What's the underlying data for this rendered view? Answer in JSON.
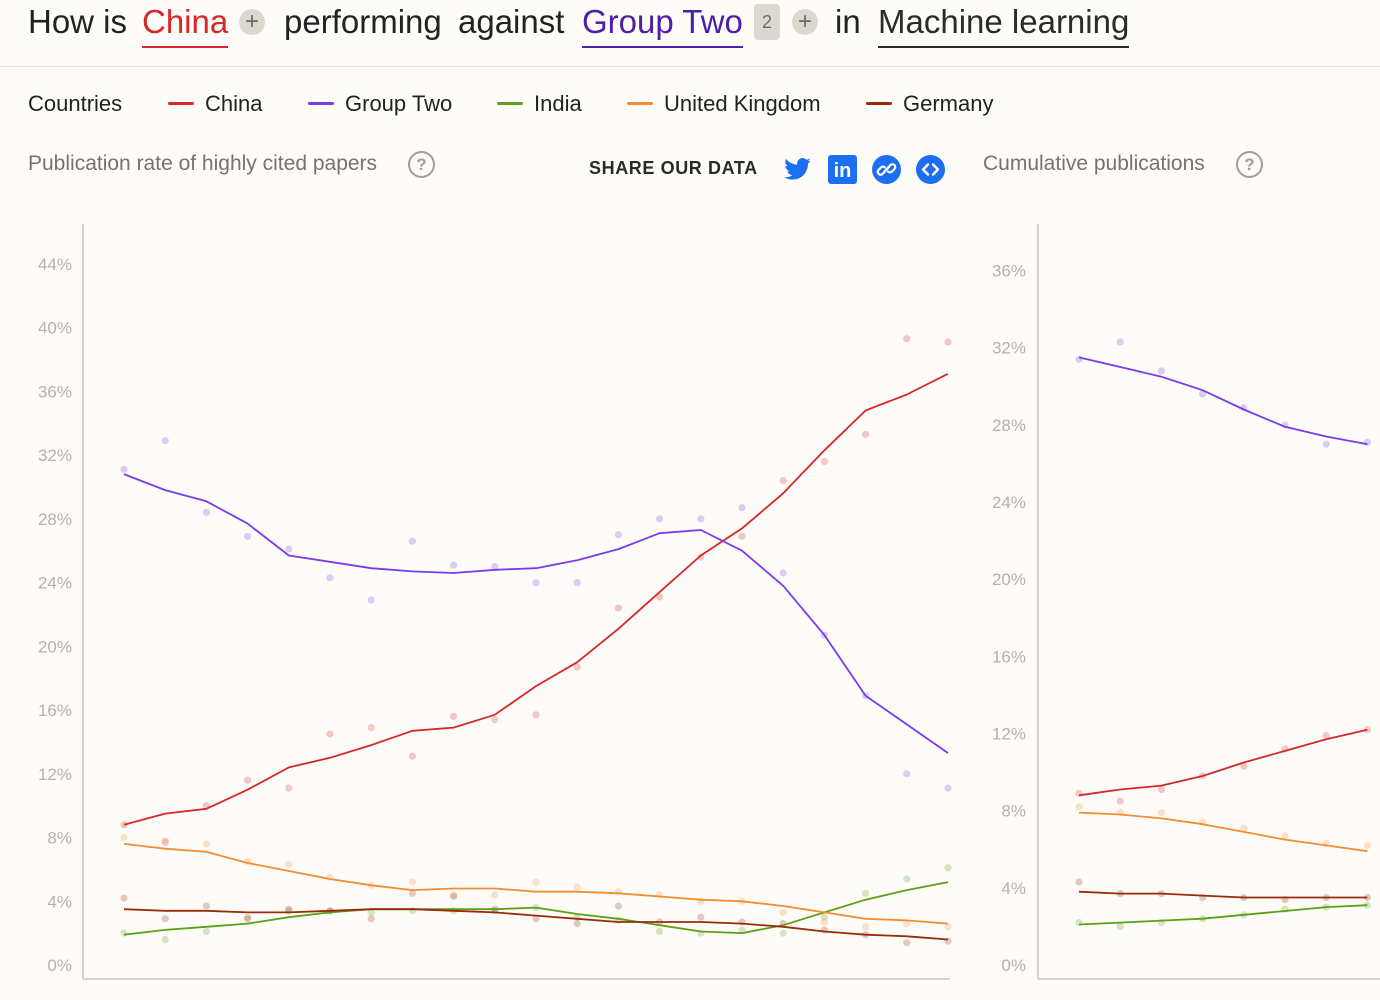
{
  "header": {
    "prefix": "How is",
    "country": "China",
    "middle": "performing",
    "against": "against",
    "group": "Group Two",
    "group_count": "2",
    "in": "in",
    "field": "Machine learning",
    "add_symbol": "+"
  },
  "legend": {
    "title": "Countries",
    "items": [
      {
        "label": "China",
        "color": "#d62828"
      },
      {
        "label": "Group Two",
        "color": "#7c3aed"
      },
      {
        "label": "India",
        "color": "#5aa116"
      },
      {
        "label": "United Kingdom",
        "color": "#f58c2e"
      },
      {
        "label": "Germany",
        "color": "#9c2a0a"
      }
    ]
  },
  "share": {
    "label": "SHARE OUR DATA",
    "icons": [
      "twitter-icon",
      "linkedin-icon",
      "link-icon",
      "embed-icon"
    ],
    "linkedin_text": "in",
    "color": "#1d6ff2"
  },
  "help_symbol": "?",
  "chart_data": [
    {
      "type": "line",
      "title": "Publication rate of highly cited papers",
      "x": [
        1,
        2,
        3,
        4,
        5,
        6,
        7,
        8,
        9,
        10,
        11,
        12,
        13,
        14,
        15,
        16,
        17,
        18,
        19,
        20,
        21
      ],
      "yticks": [
        "0%",
        "4%",
        "8%",
        "12%",
        "16%",
        "20%",
        "24%",
        "28%",
        "32%",
        "36%",
        "40%",
        "44%"
      ],
      "ylim": [
        0,
        46
      ],
      "grid": false,
      "series": [
        {
          "name": "China",
          "color": "#d62828",
          "trend": [
            8.8,
            9.5,
            9.8,
            11.0,
            12.4,
            13.0,
            13.8,
            14.7,
            14.9,
            15.7,
            17.5,
            19.0,
            21.1,
            23.4,
            25.7,
            27.4,
            29.6,
            32.3,
            34.8,
            35.8,
            37.1
          ],
          "points": [
            8.8,
            7.7,
            10.0,
            11.6,
            11.1,
            14.5,
            14.9,
            13.1,
            15.6,
            15.4,
            15.7,
            18.7,
            22.4,
            23.1,
            25.6,
            26.9,
            30.4,
            31.6,
            33.3,
            39.3,
            39.1
          ]
        },
        {
          "name": "Group Two",
          "color": "#7c3aed",
          "trend": [
            30.8,
            29.8,
            29.1,
            27.7,
            25.7,
            25.3,
            24.9,
            24.7,
            24.6,
            24.8,
            24.9,
            25.4,
            26.1,
            27.1,
            27.3,
            26.0,
            23.8,
            20.7,
            16.9,
            15.1,
            13.3
          ],
          "points": [
            31.1,
            32.9,
            28.4,
            26.9,
            26.1,
            24.3,
            22.9,
            26.6,
            25.1,
            25.0,
            24.0,
            24.0,
            27.0,
            28.0,
            28.0,
            28.7,
            24.6,
            20.7,
            16.9,
            12.0,
            11.1
          ]
        },
        {
          "name": "India",
          "color": "#5aa116",
          "trend": [
            1.9,
            2.2,
            2.4,
            2.6,
            3.0,
            3.3,
            3.5,
            3.5,
            3.5,
            3.5,
            3.6,
            3.2,
            2.9,
            2.5,
            2.1,
            2.0,
            2.5,
            3.3,
            4.1,
            4.7,
            5.2
          ],
          "points": [
            2.0,
            1.6,
            2.1,
            3.0,
            3.4,
            3.4,
            3.3,
            3.4,
            3.4,
            3.4,
            3.6,
            3.0,
            2.8,
            2.1,
            2.0,
            2.2,
            2.0,
            3.0,
            4.5,
            5.4,
            6.1
          ]
        },
        {
          "name": "United Kingdom",
          "color": "#f58c2e",
          "trend": [
            7.6,
            7.3,
            7.1,
            6.4,
            5.9,
            5.4,
            5.0,
            4.7,
            4.8,
            4.8,
            4.6,
            4.6,
            4.5,
            4.3,
            4.1,
            4.0,
            3.7,
            3.3,
            2.9,
            2.8,
            2.6
          ],
          "points": [
            8.0,
            7.8,
            7.6,
            6.5,
            6.3,
            5.5,
            5.0,
            5.2,
            4.4,
            4.4,
            5.2,
            4.9,
            4.6,
            4.4,
            4.0,
            4.0,
            3.3,
            2.7,
            2.4,
            2.6,
            2.4
          ]
        },
        {
          "name": "Germany",
          "color": "#9c2a0a",
          "trend": [
            3.5,
            3.4,
            3.4,
            3.3,
            3.3,
            3.4,
            3.5,
            3.5,
            3.4,
            3.3,
            3.1,
            2.9,
            2.7,
            2.7,
            2.7,
            2.6,
            2.4,
            2.1,
            1.9,
            1.8,
            1.6
          ],
          "points": [
            4.2,
            2.9,
            3.7,
            2.9,
            3.5,
            3.4,
            2.9,
            4.5,
            4.3,
            3.5,
            2.9,
            2.6,
            3.7,
            2.7,
            3.0,
            2.7,
            2.6,
            2.2,
            1.9,
            1.4,
            1.5
          ]
        }
      ]
    },
    {
      "type": "line",
      "title": "Cumulative publications",
      "x": [
        1,
        2,
        3,
        4,
        5,
        6,
        7,
        8
      ],
      "yticks": [
        "0%",
        "4%",
        "8%",
        "12%",
        "16%",
        "20%",
        "24%",
        "28%",
        "32%",
        "36%"
      ],
      "ylim": [
        0,
        38
      ],
      "grid": false,
      "series": [
        {
          "name": "China",
          "color": "#d62828",
          "trend": [
            8.8,
            9.1,
            9.3,
            9.8,
            10.5,
            11.1,
            11.7,
            12.2
          ],
          "points": [
            8.9,
            8.5,
            9.1,
            9.8,
            10.3,
            11.2,
            11.9,
            12.2
          ]
        },
        {
          "name": "Group Two",
          "color": "#7c3aed",
          "trend": [
            31.5,
            31.0,
            30.5,
            29.8,
            28.8,
            27.9,
            27.4,
            27.0
          ],
          "points": [
            31.4,
            32.3,
            30.8,
            29.6,
            28.9,
            28.0,
            27.0,
            27.1
          ]
        },
        {
          "name": "India",
          "color": "#5aa116",
          "trend": [
            2.1,
            2.2,
            2.3,
            2.4,
            2.6,
            2.8,
            3.0,
            3.1
          ],
          "points": [
            2.2,
            2.0,
            2.2,
            2.4,
            2.6,
            2.9,
            3.0,
            3.1
          ]
        },
        {
          "name": "United Kingdom",
          "color": "#f58c2e",
          "trend": [
            7.9,
            7.8,
            7.6,
            7.3,
            6.9,
            6.5,
            6.2,
            5.9
          ],
          "points": [
            8.2,
            7.9,
            7.9,
            7.4,
            7.1,
            6.7,
            6.3,
            6.2
          ]
        },
        {
          "name": "Germany",
          "color": "#9c2a0a",
          "trend": [
            3.8,
            3.7,
            3.7,
            3.6,
            3.5,
            3.5,
            3.5,
            3.5
          ],
          "points": [
            4.3,
            3.7,
            3.7,
            3.5,
            3.5,
            3.4,
            3.5,
            3.5
          ]
        }
      ]
    }
  ]
}
